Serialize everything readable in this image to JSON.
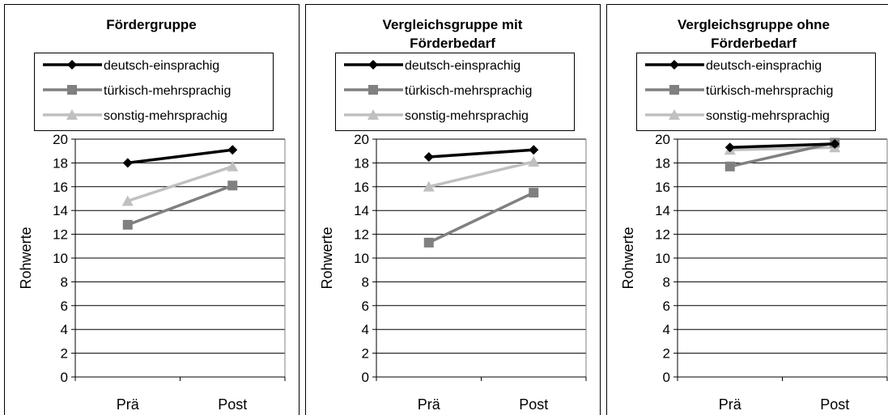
{
  "chart_data": [
    {
      "type": "line",
      "title": "Fördergruppe",
      "ylabel": "Rohwerte",
      "xlabel": "",
      "categories": [
        "Prä",
        "Post"
      ],
      "ylim": [
        0,
        20
      ],
      "yticks": [
        0,
        2,
        4,
        6,
        8,
        10,
        12,
        14,
        16,
        18,
        20
      ],
      "grid": true,
      "legend": "top",
      "series": [
        {
          "name": "deutsch-einsprachig",
          "values": [
            18.0,
            19.1
          ],
          "color": "#000000",
          "marker": "diamond"
        },
        {
          "name": "türkisch-mehrsprachig",
          "values": [
            12.8,
            16.1
          ],
          "color": "#808080",
          "marker": "square"
        },
        {
          "name": "sonstig-mehrsprachig",
          "values": [
            14.8,
            17.7
          ],
          "color": "#c0c0c0",
          "marker": "triangle"
        }
      ]
    },
    {
      "type": "line",
      "title": "Vergleichsgruppe mit Förderbedarf",
      "title_lines": [
        "Vergleichsgruppe mit",
        "Förderbedarf"
      ],
      "ylabel": "Rohwerte",
      "xlabel": "",
      "categories": [
        "Prä",
        "Post"
      ],
      "ylim": [
        0,
        20
      ],
      "yticks": [
        0,
        2,
        4,
        6,
        8,
        10,
        12,
        14,
        16,
        18,
        20
      ],
      "grid": true,
      "legend": "top",
      "series": [
        {
          "name": "deutsch-einsprachig",
          "values": [
            18.5,
            19.1
          ],
          "color": "#000000",
          "marker": "diamond"
        },
        {
          "name": "türkisch-mehrsprachig",
          "values": [
            11.3,
            15.5
          ],
          "color": "#808080",
          "marker": "square"
        },
        {
          "name": "sonstig-mehrsprachig",
          "values": [
            16.0,
            18.1
          ],
          "color": "#c0c0c0",
          "marker": "triangle"
        }
      ]
    },
    {
      "type": "line",
      "title": "Vergleichsgruppe ohne Förderbedarf",
      "title_lines": [
        "Vergleichsgruppe ohne",
        "Förderbedarf"
      ],
      "ylabel": "Rohwerte",
      "xlabel": "",
      "categories": [
        "Prä",
        "Post"
      ],
      "ylim": [
        0,
        20
      ],
      "yticks": [
        0,
        2,
        4,
        6,
        8,
        10,
        12,
        14,
        16,
        18,
        20
      ],
      "grid": true,
      "legend": "top",
      "series": [
        {
          "name": "deutsch-einsprachig",
          "values": [
            19.3,
            19.6
          ],
          "color": "#000000",
          "marker": "diamond"
        },
        {
          "name": "türkisch-mehrsprachig",
          "values": [
            17.7,
            19.7
          ],
          "color": "#808080",
          "marker": "square"
        },
        {
          "name": "sonstig-mehrsprachig",
          "values": [
            19.1,
            19.3
          ],
          "color": "#c0c0c0",
          "marker": "triangle"
        }
      ]
    }
  ]
}
